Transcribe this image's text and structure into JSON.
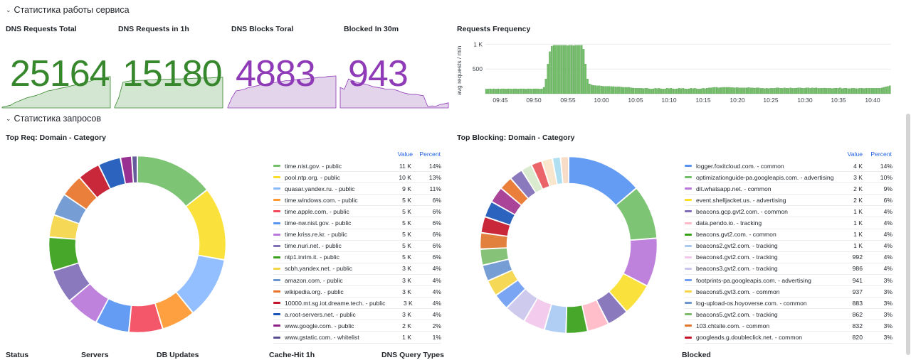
{
  "rows": {
    "service_stats": "Статистика работы сервиса",
    "request_stats": "Статистика запросов"
  },
  "stats": [
    {
      "title": "DNS Requests Total",
      "value": "25164",
      "color": "#37872d",
      "fill": "#d3e6d1"
    },
    {
      "title": "DNS Requests in 1h",
      "value": "15180",
      "color": "#37872d",
      "fill": "#d3e6d1"
    },
    {
      "title": "DNS Blocks Toral",
      "value": "4883",
      "color": "#8f3bb8",
      "fill": "#e3d4ec"
    },
    {
      "title": "Blocked In 30m",
      "value": "943",
      "color": "#8f3bb8",
      "fill": "#e3d4ec"
    }
  ],
  "freq": {
    "title": "Requests Frequency",
    "ylabel": "avg requests / min",
    "yticks": [
      "1 K",
      "500"
    ],
    "xticks": [
      "09:45",
      "09:50",
      "09:55",
      "10:00",
      "10:05",
      "10:10",
      "10:15",
      "10:20",
      "10:25",
      "10:30",
      "10:35",
      "10:40"
    ]
  },
  "chart_data": [
    {
      "type": "bar",
      "title": "Requests Frequency",
      "ylabel": "avg requests / min",
      "ylim": [
        0,
        1150
      ],
      "x_start": "09:42",
      "x_end": "10:43",
      "values": [
        95,
        95,
        100,
        95,
        100,
        95,
        100,
        95,
        100,
        100,
        95,
        100,
        100,
        95,
        100,
        100,
        95,
        100,
        100,
        100,
        95,
        100,
        100,
        95,
        100,
        100,
        100,
        95,
        100,
        130,
        300,
        600,
        850,
        960,
        980,
        980,
        980,
        980,
        980,
        980,
        980,
        975,
        980,
        980,
        975,
        980,
        980,
        980,
        980,
        900,
        600,
        300,
        200,
        180,
        170,
        165,
        160,
        160,
        155,
        150,
        150,
        150,
        150,
        145,
        145,
        140,
        140,
        140,
        135,
        130,
        130,
        130,
        130,
        120,
        115,
        110,
        110,
        110,
        110,
        105,
        110,
        110,
        100,
        95,
        100,
        110,
        105,
        110,
        100,
        95,
        100,
        110,
        105,
        110,
        100,
        95,
        100,
        110,
        105,
        110,
        100,
        95,
        100,
        110,
        105,
        110,
        100,
        95,
        100,
        110,
        105,
        110,
        120,
        120,
        125,
        130,
        130,
        120,
        125,
        130,
        130,
        130,
        130,
        125,
        125,
        120,
        125,
        120,
        120,
        120,
        120,
        120,
        125,
        120,
        120,
        115,
        120,
        120,
        110,
        110,
        105,
        110,
        105,
        110,
        110,
        110,
        120,
        120,
        110,
        110,
        120,
        110,
        110,
        120,
        110,
        110,
        115,
        120,
        120,
        110,
        110,
        120,
        120,
        110,
        120,
        115,
        120,
        110,
        110,
        110,
        115,
        110,
        110,
        110,
        105,
        110,
        110,
        110,
        120,
        105,
        110,
        110,
        105,
        105,
        110,
        110,
        105,
        105,
        110,
        110,
        105,
        110,
        110,
        110,
        110,
        110,
        110,
        110,
        110,
        120,
        130,
        140,
        150,
        160
      ]
    },
    {
      "type": "pie",
      "title": "Top Req: Domain - Category",
      "series": [
        {
          "name": "time.nist.gov. - public",
          "value": "11 K",
          "percent": "14%",
          "p": 14,
          "color": "#73bf69"
        },
        {
          "name": "pool.ntp.org. - public",
          "value": "10 K",
          "percent": "13%",
          "p": 13,
          "color": "#fade2a"
        },
        {
          "name": "quasar.yandex.ru. - public",
          "value": "9 K",
          "percent": "11%",
          "p": 11,
          "color": "#8ab8ff"
        },
        {
          "name": "time.windows.com. - public",
          "value": "5 K",
          "percent": "6%",
          "p": 6,
          "color": "#ff9830"
        },
        {
          "name": "time.apple.com. - public",
          "value": "5 K",
          "percent": "6%",
          "p": 6,
          "color": "#f2495c"
        },
        {
          "name": "time-nw.nist.gov. - public",
          "value": "5 K",
          "percent": "6%",
          "p": 6,
          "color": "#5794f2"
        },
        {
          "name": "time.kriss.re.kr. - public",
          "value": "5 K",
          "percent": "6%",
          "p": 6,
          "color": "#b877d9"
        },
        {
          "name": "time.nuri.net. - public",
          "value": "5 K",
          "percent": "6%",
          "p": 6,
          "color": "#806eb7"
        },
        {
          "name": "ntp1.inrim.it. - public",
          "value": "5 K",
          "percent": "6%",
          "p": 6,
          "color": "#37a019"
        },
        {
          "name": "scbh.yandex.net. - public",
          "value": "3 K",
          "percent": "4%",
          "p": 4,
          "color": "#f4d548"
        },
        {
          "name": "amazon.com. - public",
          "value": "3 K",
          "percent": "4%",
          "p": 4,
          "color": "#6b96d0"
        },
        {
          "name": "wikipedia.org. - public",
          "value": "3 K",
          "percent": "4%",
          "p": 4,
          "color": "#e8742b"
        },
        {
          "name": "10000.mt.sg.iot.dreame.tech. - public",
          "value": "3 K",
          "percent": "4%",
          "p": 4,
          "color": "#c4162a"
        },
        {
          "name": "a.root-servers.net. - public",
          "value": "3 K",
          "percent": "4%",
          "p": 4,
          "color": "#1a56b9"
        },
        {
          "name": "www.google.com. - public",
          "value": "2 K",
          "percent": "2%",
          "p": 2,
          "color": "#8f2088"
        },
        {
          "name": "www.gstatic.com. - whitelist",
          "value": "1 K",
          "percent": "1%",
          "p": 1,
          "color": "#5a4e93"
        }
      ]
    },
    {
      "type": "pie",
      "title": "Top Blocking: Domain - Category",
      "series": [
        {
          "name": "logger.foxitcloud.com. - common",
          "value": "4 K",
          "percent": "14%",
          "p": 14,
          "color": "#5794f2"
        },
        {
          "name": "optimizationguide-pa.googleapis.com. - advertising",
          "value": "3 K",
          "percent": "10%",
          "p": 10,
          "color": "#73bf69"
        },
        {
          "name": "dit.whatsapp.net. - common",
          "value": "2 K",
          "percent": "9%",
          "p": 9,
          "color": "#b877d9"
        },
        {
          "name": "event.shelljacket.us. - advertising",
          "value": "2 K",
          "percent": "6%",
          "p": 6,
          "color": "#fade2a"
        },
        {
          "name": "beacons.gcp.gvt2.com. - common",
          "value": "1 K",
          "percent": "4%",
          "p": 4,
          "color": "#806eb7"
        },
        {
          "name": "data.pendo.io. - tracking",
          "value": "1 K",
          "percent": "4%",
          "p": 4,
          "color": "#ffb8c6"
        },
        {
          "name": "beacons.gvt2.com. - common",
          "value": "1 K",
          "percent": "4%",
          "p": 4,
          "color": "#37a019"
        },
        {
          "name": "beacons2.gvt2.com. - tracking",
          "value": "1 K",
          "percent": "4%",
          "p": 4,
          "color": "#a9c9f2"
        },
        {
          "name": "beacons4.gvt2.com. - tracking",
          "value": "992",
          "percent": "4%",
          "p": 4,
          "color": "#f1c7ec"
        },
        {
          "name": "beacons3.gvt2.com. - tracking",
          "value": "986",
          "percent": "4%",
          "p": 4,
          "color": "#c9c6ec"
        },
        {
          "name": "footprints-pa.googleapis.com. - advertising",
          "value": "941",
          "percent": "3%",
          "p": 3,
          "color": "#6f9df2"
        },
        {
          "name": "beacons5.gvt3.com. - common",
          "value": "937",
          "percent": "3%",
          "p": 3,
          "color": "#f4d548"
        },
        {
          "name": "log-upload-os.hoyoverse.com. - common",
          "value": "883",
          "percent": "3%",
          "p": 3,
          "color": "#6b96d0"
        },
        {
          "name": "beacons5.gvt2.com. - tracking",
          "value": "862",
          "percent": "3%",
          "p": 3,
          "color": "#7cbd6c"
        },
        {
          "name": "103.chtsite.com. - common",
          "value": "832",
          "percent": "3%",
          "p": 3,
          "color": "#e0752d"
        },
        {
          "name": "googleads.g.doubleclick.net. - common",
          "value": "820",
          "percent": "3%",
          "p": 3,
          "color": "#c4162a"
        }
      ],
      "extra_slices": [
        {
          "p": 3,
          "color": "#1a56b9"
        },
        {
          "p": 3,
          "color": "#a33490"
        },
        {
          "p": 2.5,
          "color": "#e8742b"
        },
        {
          "p": 2.5,
          "color": "#806eb7"
        },
        {
          "p": 2,
          "color": "#d6e8cb"
        },
        {
          "p": 2,
          "color": "#e8575c"
        },
        {
          "p": 2,
          "color": "#f9e4c8"
        },
        {
          "p": 1.5,
          "color": "#a8dcf0"
        },
        {
          "p": 1.5,
          "color": "#f6d9c3"
        }
      ]
    }
  ],
  "legend_head": {
    "value": "Value",
    "percent": "Percent"
  },
  "bottom": [
    "Status",
    "Servers",
    "DB Updates",
    "Cache-Hit 1h",
    "DNS Query Types",
    "Blocked"
  ]
}
